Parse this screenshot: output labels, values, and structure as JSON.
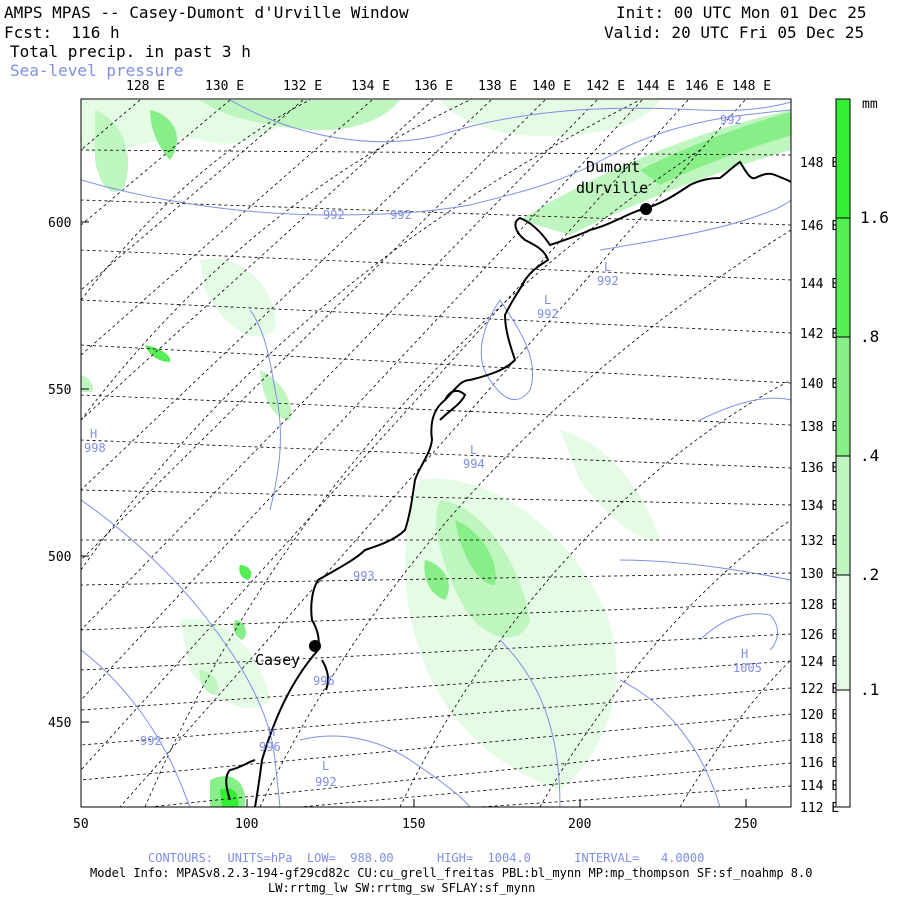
{
  "header": {
    "title": "AMPS MPAS -- Casey-Dumont d'Urville Window",
    "fcst": "Fcst:  116 h",
    "field": "Total precip. in past 3 h",
    "contour_field": "Sea-level pressure",
    "init": "Init: 00 UTC Mon 01 Dec 25",
    "valid": "Valid: 20 UTC Fri 05 Dec 25"
  },
  "axes": {
    "x_ticks": [
      "50",
      "100",
      "150",
      "200",
      "250"
    ],
    "y_ticks": [
      "600",
      "550",
      "500",
      "450"
    ],
    "top_lon_labels": [
      "128 E",
      "130 E",
      "132 E",
      "134 E",
      "136 E",
      "138 E",
      "140 E",
      "142 E",
      "144 E",
      "146 E",
      "148 E"
    ],
    "right_lon_labels": [
      "148 E",
      "146 E",
      "144 E",
      "142 E",
      "140 E",
      "138 E",
      "136 E",
      "134 E",
      "132 E",
      "130 E",
      "128 E",
      "126 E",
      "124 E",
      "122 E",
      "120 E",
      "118 E",
      "116 E",
      "114 E",
      "112 E"
    ]
  },
  "colorbar": {
    "unit": "mm",
    "labels": [
      "1.6",
      ".8",
      ".4",
      ".2",
      ".1"
    ],
    "colors": [
      "#33ee33",
      "#55ee55",
      "#88ee88",
      "#bff5bf",
      "#e4fbe4"
    ]
  },
  "stations": [
    {
      "name": "Casey"
    },
    {
      "name_line1": "Dumont",
      "name_line2": "dUrville"
    }
  ],
  "contour_labels": [
    {
      "text": "992"
    },
    {
      "text": "992"
    },
    {
      "text": "992"
    },
    {
      "text": "L"
    },
    {
      "text": "992"
    },
    {
      "text": "L"
    },
    {
      "text": "992"
    },
    {
      "text": "H"
    },
    {
      "text": "998"
    },
    {
      "text": "L"
    },
    {
      "text": "994"
    },
    {
      "text": "993"
    },
    {
      "text": "996"
    },
    {
      "text": "H"
    },
    {
      "text": "996"
    },
    {
      "text": "L"
    },
    {
      "text": "992"
    },
    {
      "text": "992"
    },
    {
      "text": "H"
    },
    {
      "text": "1005"
    }
  ],
  "footer": {
    "contours": "CONTOURS:  UNITS=hPa  LOW=  988.00      HIGH=  1004.0      INTERVAL=   4.0000",
    "model_info": "Model Info: MPASv8.2.3-194-gf29cd82c CU:cu_grell_freitas PBL:bl_mynn MP:mp_thompson SF:sf_noahmp 8.0",
    "model_info2": "LW:rrtmg_lw SW:rrtmg_sw SFLAY:sf_mynn"
  },
  "colors": {
    "contour": "#7f8fe6",
    "coast": "#000000",
    "grid": "#000000"
  }
}
